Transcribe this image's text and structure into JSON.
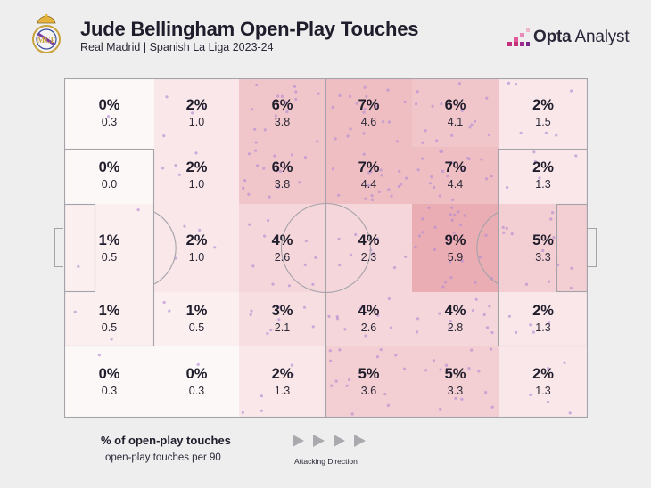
{
  "header": {
    "title": "Jude Bellingham Open-Play Touches",
    "subtitle": "Real Madrid | Spanish La Liga 2023-24",
    "brand": "Opta Analyst",
    "brand_bold": "Opta",
    "brand_light": " Analyst"
  },
  "colors": {
    "background": "#eeeeef",
    "pitch": "#ffffff",
    "heat": "#e8a0a8",
    "dots": "#b48cd2",
    "text": "#1f1d2b"
  },
  "legend": {
    "primary": "% of open-play touches",
    "secondary": "open-play touches per 90",
    "direction": "Attacking Direction"
  },
  "chart_data": {
    "type": "heatmap",
    "columns": 6,
    "rows": 5,
    "cells": [
      [
        {
          "pct": "0%",
          "per90": "0.3"
        },
        {
          "pct": "2%",
          "per90": "1.0"
        },
        {
          "pct": "6%",
          "per90": "3.8"
        },
        {
          "pct": "7%",
          "per90": "4.6"
        },
        {
          "pct": "6%",
          "per90": "4.1"
        },
        {
          "pct": "2%",
          "per90": "1.5"
        }
      ],
      [
        {
          "pct": "0%",
          "per90": "0.0"
        },
        {
          "pct": "2%",
          "per90": "1.0"
        },
        {
          "pct": "6%",
          "per90": "3.8"
        },
        {
          "pct": "7%",
          "per90": "4.4"
        },
        {
          "pct": "7%",
          "per90": "4.4"
        },
        {
          "pct": "2%",
          "per90": "1.3"
        }
      ],
      [
        {
          "pct": "1%",
          "per90": "0.5"
        },
        {
          "pct": "2%",
          "per90": "1.0"
        },
        {
          "pct": "4%",
          "per90": "2.6"
        },
        {
          "pct": "4%",
          "per90": "2.3"
        },
        {
          "pct": "9%",
          "per90": "5.9"
        },
        {
          "pct": "5%",
          "per90": "3.3"
        }
      ],
      [
        {
          "pct": "1%",
          "per90": "0.5"
        },
        {
          "pct": "1%",
          "per90": "0.5"
        },
        {
          "pct": "3%",
          "per90": "2.1"
        },
        {
          "pct": "4%",
          "per90": "2.6"
        },
        {
          "pct": "4%",
          "per90": "2.8"
        },
        {
          "pct": "2%",
          "per90": "1.3"
        }
      ],
      [
        {
          "pct": "0%",
          "per90": "0.3"
        },
        {
          "pct": "0%",
          "per90": "0.3"
        },
        {
          "pct": "2%",
          "per90": "1.3"
        },
        {
          "pct": "5%",
          "per90": "3.6"
        },
        {
          "pct": "5%",
          "per90": "3.3"
        },
        {
          "pct": "2%",
          "per90": "1.3"
        }
      ]
    ]
  }
}
